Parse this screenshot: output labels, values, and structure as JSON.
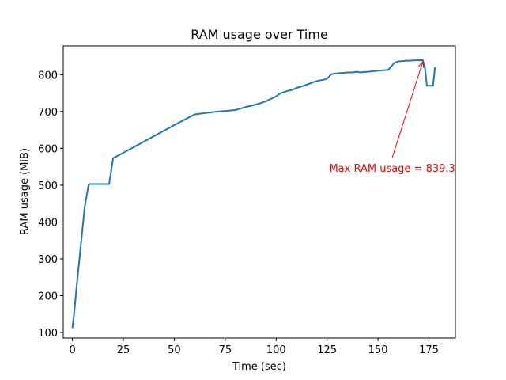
{
  "chart_data": {
    "type": "line",
    "title": "RAM usage over Time",
    "xlabel": "Time (sec)",
    "ylabel": "RAM usage (MiB)",
    "xlim": [
      -4.5,
      188
    ],
    "ylim": [
      85,
      878
    ],
    "xticks": [
      0,
      25,
      50,
      75,
      100,
      125,
      150,
      175
    ],
    "yticks": [
      100,
      200,
      300,
      400,
      500,
      600,
      700,
      800
    ],
    "grid": false,
    "line_color": "#1f77b4",
    "series": [
      {
        "x": [
          0,
          1,
          2,
          4,
          6,
          8,
          10,
          12,
          14,
          16,
          18,
          20,
          30,
          40,
          50,
          60,
          70,
          80,
          85,
          88,
          92,
          95,
          98,
          100,
          102,
          105,
          108,
          110,
          113,
          115,
          117,
          119,
          121,
          123,
          125,
          127,
          129,
          131,
          133,
          135,
          137,
          140,
          141,
          143,
          145,
          147,
          150,
          155,
          158,
          160,
          162,
          164,
          166,
          168,
          170,
          172,
          173,
          174,
          175,
          177,
          178
        ],
        "y": [
          112,
          160,
          220,
          330,
          440,
          503,
          503,
          503,
          503,
          503,
          503,
          573,
          603,
          633,
          663,
          692,
          699,
          704,
          712,
          716,
          722,
          728,
          736,
          741,
          749,
          755,
          759,
          764,
          769,
          773,
          777,
          781,
          784,
          786,
          789,
          801,
          803,
          804,
          805,
          806,
          806,
          808,
          806,
          807,
          808,
          809,
          811,
          813,
          832,
          836,
          837,
          838,
          838,
          839,
          839.3,
          839.3,
          820,
          770,
          770,
          770,
          820
        ]
      }
    ],
    "annotation": {
      "text": "Max RAM usage = 839.3",
      "color": "#ff0000",
      "point": [
        172,
        839.3
      ],
      "text_anchor_data": [
        157,
        575
      ]
    }
  }
}
